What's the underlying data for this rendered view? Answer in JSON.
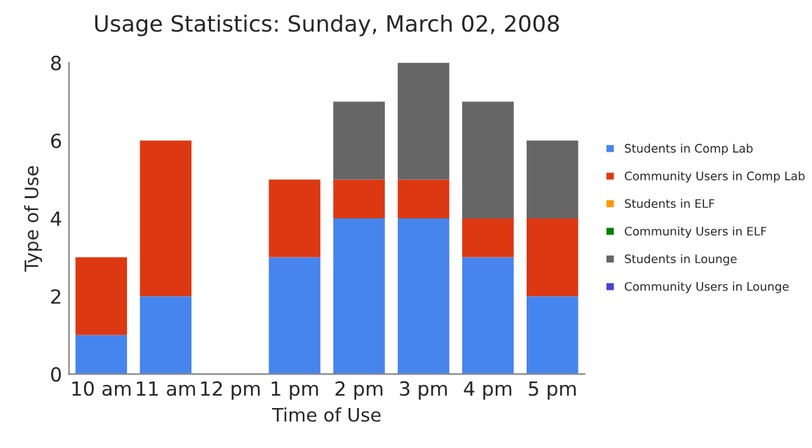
{
  "chart_data": {
    "type": "bar",
    "title": "Usage Statistics: Sunday, March 02, 2008",
    "xlabel": "Time of Use",
    "ylabel": "Type of Use",
    "categories": [
      "10 am",
      "11 am",
      "12 pm",
      "1 pm",
      "2 pm",
      "3 pm",
      "4 pm",
      "5 pm"
    ],
    "stacked": true,
    "ylim": [
      0,
      8
    ],
    "yticks": [
      0,
      2,
      4,
      6,
      8
    ],
    "grid": false,
    "legend": "right",
    "series": [
      {
        "name": "Students in Comp Lab",
        "color": "#4684ee",
        "values": [
          1,
          2,
          0,
          3,
          4,
          4,
          3,
          2
        ]
      },
      {
        "name": "Community Users in Comp Lab",
        "color": "#dc3912",
        "values": [
          2,
          4,
          0,
          2,
          1,
          1,
          1,
          2
        ]
      },
      {
        "name": "Students in ELF",
        "color": "#ff9900",
        "values": [
          0,
          0,
          0,
          0,
          0,
          0,
          0,
          0
        ]
      },
      {
        "name": "Community Users in ELF",
        "color": "#008000",
        "values": [
          0,
          0,
          0,
          0,
          0,
          0,
          0,
          0
        ]
      },
      {
        "name": "Students in Lounge",
        "color": "#666666",
        "values": [
          0,
          0,
          0,
          0,
          2,
          3,
          3,
          2
        ]
      },
      {
        "name": "Community Users in Lounge",
        "color": "#4942cc",
        "values": [
          0,
          0,
          0,
          0,
          0,
          0,
          0,
          0
        ]
      }
    ]
  }
}
